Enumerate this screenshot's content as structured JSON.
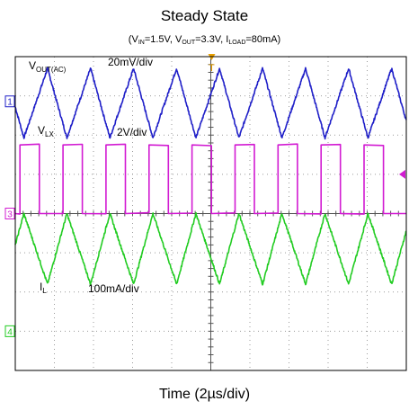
{
  "chart_data": {
    "type": "line",
    "title": "Steady State",
    "subtitle": {
      "vin_label": "V",
      "vin_sub": "IN",
      "vin_value": "=1.5V, ",
      "vout_label": "V",
      "vout_sub": "OUT",
      "vout_value": "=3.3V, ",
      "iload_label": "I",
      "iload_sub": "LOAD",
      "iload_value": "=80mA)",
      "open_paren": "("
    },
    "xlabel": "Time (2µs/div)",
    "x_divisions": 10,
    "y_divisions": 8,
    "switching_period_div": 1.1,
    "channels": [
      {
        "id": 1,
        "marker": "1",
        "name_main": "V",
        "name_sub": "OUT(AC)",
        "scale": "20mV/div",
        "color": "#1f1fc8",
        "shape": "triangle",
        "ground_div": 2.86,
        "high_div": 3.7,
        "low_div": 1.93
      },
      {
        "id": 3,
        "marker": "3",
        "name_main": "V",
        "name_sub": "LX",
        "scale": "2V/div",
        "color": "#d21bd2",
        "shape": "square",
        "ground_div": 0.0,
        "high_div": 1.75,
        "low_div": 0.0,
        "duty": 0.45
      },
      {
        "id": 4,
        "marker": "4",
        "name_main": "I",
        "name_sub": "L",
        "scale": "100mA/div",
        "color": "#22cc22",
        "shape": "triangle",
        "ground_div": -3.0,
        "high_div": 0.0,
        "low_div": -1.8
      }
    ],
    "trigger_marker": "T",
    "grid": true
  }
}
